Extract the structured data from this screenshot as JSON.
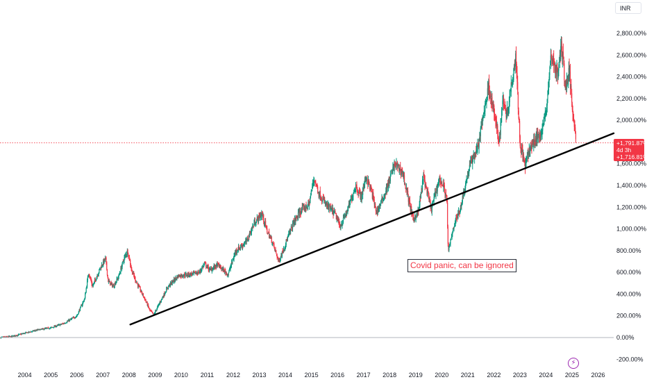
{
  "currency_label": "INR",
  "annotation": {
    "text": "Covid panic, can be ignored",
    "color": "#f23645"
  },
  "last_price_badge": {
    "value": "+1,791.87%",
    "countdown": "4d 3h",
    "color": "#f23645"
  },
  "low_price_badge": {
    "value": "+1,716.81%",
    "color": "#f23645"
  },
  "chart_data": {
    "type": "candlestick",
    "y_axis": {
      "ticks": [
        "2,800.00%",
        "2,600.00%",
        "2,400.00%",
        "2,200.00%",
        "2,000.00%",
        "1,600.00%",
        "1,400.00%",
        "1,200.00%",
        "1,000.00%",
        "800.00%",
        "600.00%",
        "400.00%",
        "200.00%",
        "0.00%",
        "-200.00%"
      ],
      "tick_values": [
        2800,
        2600,
        2400,
        2200,
        2000,
        1600,
        1400,
        1200,
        1000,
        800,
        600,
        400,
        200,
        0,
        -200
      ],
      "range": [
        -250,
        2900
      ],
      "unit": "%"
    },
    "x_axis": {
      "ticks": [
        "2004",
        "2005",
        "2006",
        "2007",
        "2008",
        "2009",
        "2010",
        "2011",
        "2012",
        "2013",
        "2014",
        "2015",
        "2016",
        "2017",
        "2018",
        "2019",
        "2020",
        "2021",
        "2022",
        "2023",
        "2024",
        "2025",
        "2026"
      ],
      "tick_values": [
        2004,
        2005,
        2006,
        2007,
        2008,
        2009,
        2010,
        2011,
        2012,
        2013,
        2014,
        2015,
        2016,
        2017,
        2018,
        2019,
        2020,
        2021,
        2022,
        2023,
        2024,
        2025,
        2026
      ],
      "range": [
        2003.05,
        2026.6
      ]
    },
    "series": [
      {
        "type": "candlestick",
        "up_color": "#089981",
        "down_color": "#f23645",
        "points": [
          [
            2003.05,
            0
          ],
          [
            2003.5,
            10
          ],
          [
            2004.0,
            40
          ],
          [
            2004.5,
            70
          ],
          [
            2005.0,
            90
          ],
          [
            2005.5,
            130
          ],
          [
            2006.0,
            200
          ],
          [
            2006.3,
            360
          ],
          [
            2006.45,
            600
          ],
          [
            2006.6,
            470
          ],
          [
            2006.9,
            640
          ],
          [
            2007.1,
            730
          ],
          [
            2007.2,
            520
          ],
          [
            2007.4,
            470
          ],
          [
            2007.6,
            560
          ],
          [
            2007.8,
            720
          ],
          [
            2007.95,
            800
          ],
          [
            2008.1,
            620
          ],
          [
            2008.3,
            500
          ],
          [
            2008.6,
            360
          ],
          [
            2008.8,
            250
          ],
          [
            2008.95,
            210
          ],
          [
            2009.2,
            330
          ],
          [
            2009.5,
            470
          ],
          [
            2009.9,
            570
          ],
          [
            2010.3,
            580
          ],
          [
            2010.7,
            600
          ],
          [
            2010.9,
            680
          ],
          [
            2011.1,
            620
          ],
          [
            2011.4,
            670
          ],
          [
            2011.8,
            580
          ],
          [
            2012.1,
            800
          ],
          [
            2012.5,
            880
          ],
          [
            2012.8,
            1050
          ],
          [
            2013.1,
            1140
          ],
          [
            2013.3,
            980
          ],
          [
            2013.5,
            880
          ],
          [
            2013.75,
            700
          ],
          [
            2014.0,
            860
          ],
          [
            2014.3,
            1050
          ],
          [
            2014.6,
            1170
          ],
          [
            2014.9,
            1220
          ],
          [
            2015.1,
            1470
          ],
          [
            2015.3,
            1320
          ],
          [
            2015.6,
            1210
          ],
          [
            2015.9,
            1140
          ],
          [
            2016.1,
            1020
          ],
          [
            2016.4,
            1180
          ],
          [
            2016.7,
            1400
          ],
          [
            2016.9,
            1290
          ],
          [
            2017.1,
            1480
          ],
          [
            2017.3,
            1350
          ],
          [
            2017.5,
            1150
          ],
          [
            2017.8,
            1310
          ],
          [
            2018.0,
            1450
          ],
          [
            2018.2,
            1600
          ],
          [
            2018.5,
            1520
          ],
          [
            2018.7,
            1300
          ],
          [
            2018.9,
            1090
          ],
          [
            2019.1,
            1150
          ],
          [
            2019.3,
            1480
          ],
          [
            2019.6,
            1180
          ],
          [
            2019.9,
            1460
          ],
          [
            2020.1,
            1380
          ],
          [
            2020.2,
            1260
          ],
          [
            2020.25,
            780
          ],
          [
            2020.45,
            1020
          ],
          [
            2020.7,
            1180
          ],
          [
            2020.95,
            1450
          ],
          [
            2021.1,
            1600
          ],
          [
            2021.4,
            1760
          ],
          [
            2021.6,
            2050
          ],
          [
            2021.8,
            2320
          ],
          [
            2022.0,
            2080
          ],
          [
            2022.2,
            1800
          ],
          [
            2022.35,
            2200
          ],
          [
            2022.5,
            2050
          ],
          [
            2022.7,
            2380
          ],
          [
            2022.85,
            2600
          ],
          [
            2023.0,
            1800
          ],
          [
            2023.2,
            1580
          ],
          [
            2023.4,
            1750
          ],
          [
            2023.6,
            1820
          ],
          [
            2023.85,
            1900
          ],
          [
            2024.0,
            2080
          ],
          [
            2024.2,
            2600
          ],
          [
            2024.45,
            2420
          ],
          [
            2024.6,
            2700
          ],
          [
            2024.75,
            2300
          ],
          [
            2024.9,
            2450
          ],
          [
            2025.0,
            2150
          ],
          [
            2025.1,
            1950
          ],
          [
            2025.16,
            1792
          ]
        ]
      }
    ],
    "trendline": {
      "start": [
        2008.05,
        120
      ],
      "end": [
        2026.6,
        1880
      ],
      "color": "#000000"
    },
    "last_price_value": 1791.87,
    "grid": false,
    "legend": "none"
  }
}
